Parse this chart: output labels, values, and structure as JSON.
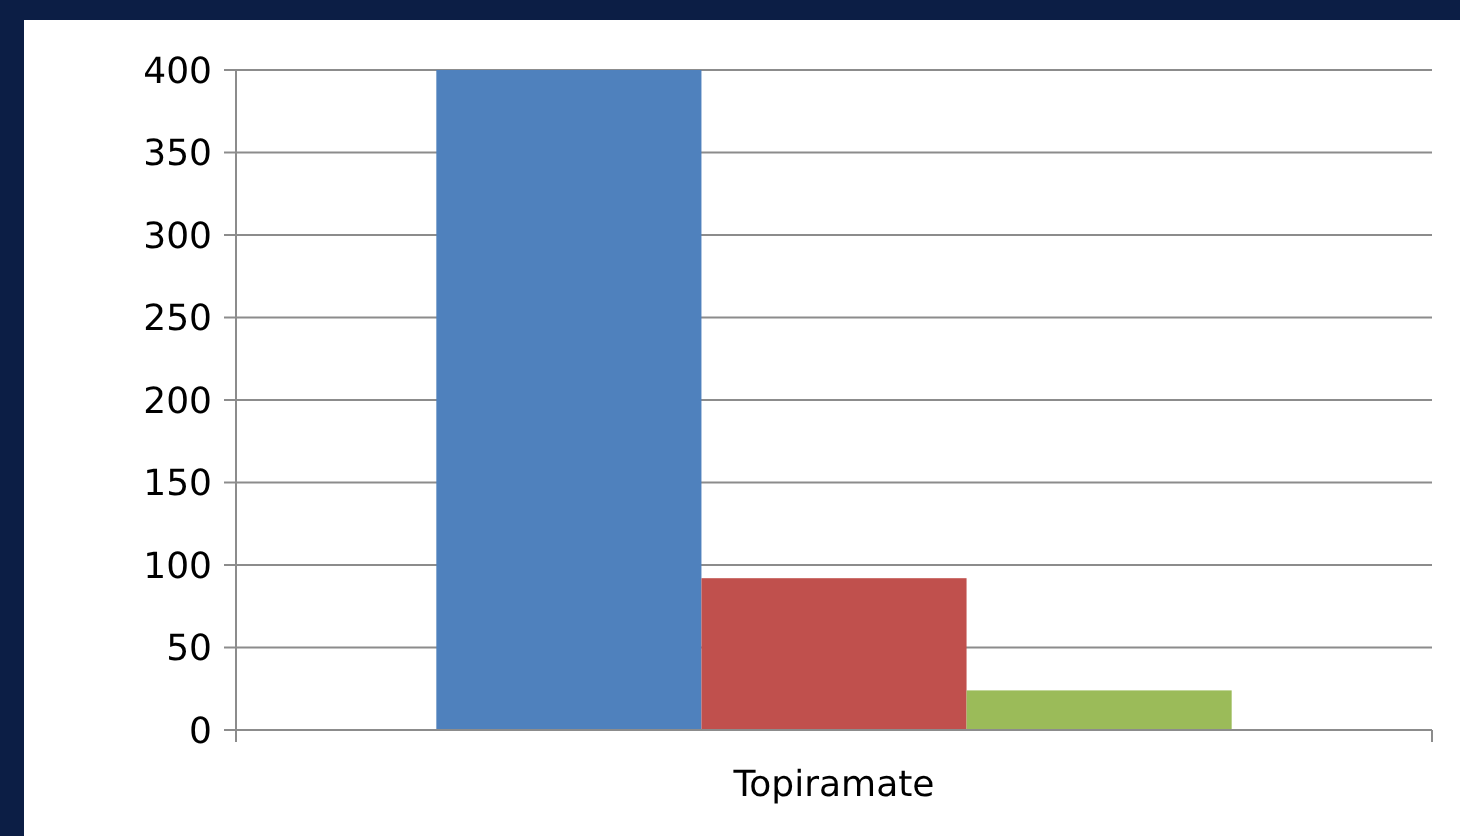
{
  "chart_data": {
    "type": "bar",
    "categories": [
      "Topiramate"
    ],
    "series": [
      {
        "color": "#4f81bd",
        "values": [
          400
        ]
      },
      {
        "color": "#c0504d",
        "values": [
          92
        ]
      },
      {
        "color": "#9bbb59",
        "values": [
          24
        ]
      }
    ],
    "ylim": [
      0,
      400
    ],
    "yticks": [
      0,
      50,
      100,
      150,
      200,
      250,
      300,
      350,
      400
    ],
    "grid": "y"
  }
}
